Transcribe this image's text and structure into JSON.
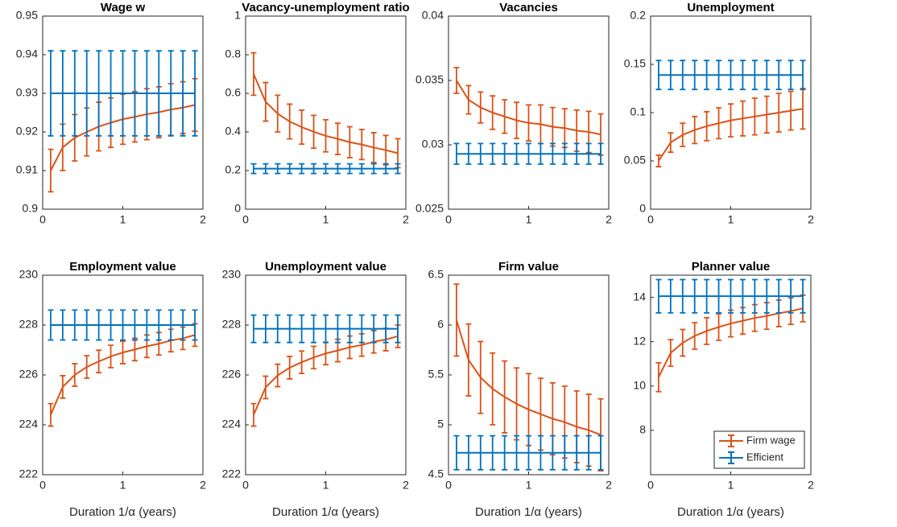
{
  "chart_data": [
    {
      "type": "line",
      "title": "Wage w",
      "x": [
        0.1,
        0.25,
        0.4,
        0.55,
        0.7,
        0.85,
        1.0,
        1.15,
        1.3,
        1.45,
        1.6,
        1.75,
        1.9
      ],
      "xlim": [
        0,
        2
      ],
      "xticks": [
        0,
        1,
        2
      ],
      "ylim": [
        0.9,
        0.95
      ],
      "yticks": [
        0.9,
        0.91,
        0.92,
        0.93,
        0.94,
        0.95
      ],
      "series": [
        {
          "color": "#d95319",
          "values": [
            0.91,
            0.916,
            0.9185,
            0.92,
            0.9214,
            0.9224,
            0.9233,
            0.9239,
            0.9246,
            0.9251,
            0.9258,
            0.9263,
            0.927
          ],
          "errors": [
            0.0055,
            0.006,
            0.006,
            0.0062,
            0.0063,
            0.0064,
            0.0065,
            0.0065,
            0.0066,
            0.0066,
            0.0067,
            0.0067,
            0.0068
          ]
        },
        {
          "color": "#0072bd",
          "values": [
            0.93,
            0.93,
            0.93,
            0.93,
            0.93,
            0.93,
            0.93,
            0.93,
            0.93,
            0.93,
            0.93,
            0.93,
            0.93
          ],
          "errors": [
            0.011,
            0.011,
            0.011,
            0.011,
            0.011,
            0.011,
            0.011,
            0.011,
            0.011,
            0.011,
            0.011,
            0.011,
            0.011
          ]
        }
      ]
    },
    {
      "type": "line",
      "title": "Vacancy-unemployment ratio",
      "x": [
        0.1,
        0.25,
        0.4,
        0.55,
        0.7,
        0.85,
        1.0,
        1.15,
        1.3,
        1.45,
        1.6,
        1.75,
        1.9
      ],
      "xlim": [
        0,
        2
      ],
      "xticks": [
        0,
        1,
        2
      ],
      "ylim": [
        0,
        1
      ],
      "yticks": [
        0,
        0.2,
        0.4,
        0.6,
        0.8,
        1
      ],
      "series": [
        {
          "color": "#d95319",
          "values": [
            0.7,
            0.556,
            0.495,
            0.454,
            0.425,
            0.401,
            0.38,
            0.364,
            0.347,
            0.335,
            0.319,
            0.306,
            0.29
          ],
          "errors": [
            0.11,
            0.1,
            0.095,
            0.09,
            0.088,
            0.085,
            0.083,
            0.081,
            0.08,
            0.078,
            0.077,
            0.076,
            0.075
          ]
        },
        {
          "color": "#0072bd",
          "values": [
            0.21,
            0.21,
            0.21,
            0.21,
            0.21,
            0.21,
            0.21,
            0.21,
            0.21,
            0.21,
            0.21,
            0.21,
            0.21
          ],
          "errors": [
            0.025,
            0.025,
            0.025,
            0.025,
            0.025,
            0.025,
            0.025,
            0.025,
            0.025,
            0.025,
            0.025,
            0.025,
            0.025
          ]
        }
      ]
    },
    {
      "type": "line",
      "title": "Vacancies",
      "x": [
        0.1,
        0.25,
        0.4,
        0.55,
        0.7,
        0.85,
        1.0,
        1.15,
        1.3,
        1.45,
        1.6,
        1.75,
        1.9
      ],
      "xlim": [
        0,
        2
      ],
      "xticks": [
        0,
        1,
        2
      ],
      "ylim": [
        0.025,
        0.04
      ],
      "yticks": [
        0.025,
        0.03,
        0.035,
        0.04
      ],
      "series": [
        {
          "color": "#d95319",
          "values": [
            0.035,
            0.0335,
            0.0329,
            0.0325,
            0.0322,
            0.0319,
            0.0317,
            0.0316,
            0.0314,
            0.0313,
            0.0311,
            0.031,
            0.0308
          ],
          "errors": [
            0.001,
            0.0011,
            0.0012,
            0.0013,
            0.0013,
            0.0014,
            0.0014,
            0.0015,
            0.0015,
            0.0015,
            0.0016,
            0.0016,
            0.0016
          ]
        },
        {
          "color": "#0072bd",
          "values": [
            0.0293,
            0.0293,
            0.0293,
            0.0293,
            0.0293,
            0.0293,
            0.0293,
            0.0293,
            0.0293,
            0.0293,
            0.0293,
            0.0293,
            0.0293
          ],
          "errors": [
            0.0008,
            0.0008,
            0.0008,
            0.0008,
            0.0008,
            0.0008,
            0.0008,
            0.0008,
            0.0008,
            0.0008,
            0.0008,
            0.0008,
            0.0008
          ]
        }
      ]
    },
    {
      "type": "line",
      "title": "Unemployment",
      "x": [
        0.1,
        0.25,
        0.4,
        0.55,
        0.7,
        0.85,
        1.0,
        1.15,
        1.3,
        1.45,
        1.6,
        1.75,
        1.9
      ],
      "xlim": [
        0,
        2
      ],
      "xticks": [
        0,
        1,
        2
      ],
      "ylim": [
        0,
        0.2
      ],
      "yticks": [
        0,
        0.05,
        0.1,
        0.15,
        0.2
      ],
      "series": [
        {
          "color": "#d95319",
          "values": [
            0.05,
            0.069,
            0.077,
            0.082,
            0.086,
            0.089,
            0.092,
            0.094,
            0.096,
            0.098,
            0.1,
            0.102,
            0.104
          ],
          "errors": [
            0.006,
            0.01,
            0.012,
            0.014,
            0.015,
            0.016,
            0.017,
            0.018,
            0.019,
            0.019,
            0.02,
            0.02,
            0.021
          ]
        },
        {
          "color": "#0072bd",
          "values": [
            0.139,
            0.139,
            0.139,
            0.139,
            0.139,
            0.139,
            0.139,
            0.139,
            0.139,
            0.139,
            0.139,
            0.139,
            0.139
          ],
          "errors": [
            0.015,
            0.015,
            0.015,
            0.015,
            0.015,
            0.015,
            0.015,
            0.015,
            0.015,
            0.015,
            0.015,
            0.015,
            0.015
          ]
        }
      ]
    },
    {
      "type": "line",
      "title": "Employment value",
      "xlabel": "Duration 1/α (years)",
      "x": [
        0.1,
        0.25,
        0.4,
        0.55,
        0.7,
        0.85,
        1.0,
        1.15,
        1.3,
        1.45,
        1.6,
        1.75,
        1.9
      ],
      "xlim": [
        0,
        2
      ],
      "xticks": [
        0,
        1,
        2
      ],
      "ylim": [
        222,
        230
      ],
      "yticks": [
        222,
        224,
        226,
        228,
        230
      ],
      "series": [
        {
          "color": "#d95319",
          "values": [
            224.4,
            225.52,
            226.0,
            226.32,
            226.54,
            226.74,
            226.9,
            227.02,
            227.15,
            227.25,
            227.38,
            227.47,
            227.6
          ],
          "errors": [
            0.45,
            0.45,
            0.45,
            0.45,
            0.45,
            0.45,
            0.45,
            0.45,
            0.45,
            0.45,
            0.45,
            0.45,
            0.45
          ]
        },
        {
          "color": "#0072bd",
          "values": [
            228,
            228,
            228,
            228,
            228,
            228,
            228,
            228,
            228,
            228,
            228,
            228,
            228
          ],
          "errors": [
            0.6,
            0.6,
            0.6,
            0.6,
            0.6,
            0.6,
            0.6,
            0.6,
            0.6,
            0.6,
            0.6,
            0.6,
            0.6
          ]
        }
      ]
    },
    {
      "type": "line",
      "title": "Unemployment value",
      "xlabel": "Duration 1/α (years)",
      "x": [
        0.1,
        0.25,
        0.4,
        0.55,
        0.7,
        0.85,
        1.0,
        1.15,
        1.3,
        1.45,
        1.6,
        1.75,
        1.9
      ],
      "xlim": [
        0,
        2
      ],
      "xticks": [
        0,
        1,
        2
      ],
      "ylim": [
        222,
        230
      ],
      "yticks": [
        222,
        224,
        226,
        228,
        230
      ],
      "series": [
        {
          "color": "#d95319",
          "values": [
            224.4,
            225.5,
            225.98,
            226.29,
            226.51,
            226.7,
            226.86,
            226.98,
            227.11,
            227.2,
            227.33,
            227.42,
            227.55
          ],
          "errors": [
            0.45,
            0.45,
            0.45,
            0.45,
            0.45,
            0.45,
            0.45,
            0.45,
            0.45,
            0.45,
            0.45,
            0.45,
            0.45
          ]
        },
        {
          "color": "#0072bd",
          "values": [
            227.85,
            227.85,
            227.85,
            227.85,
            227.85,
            227.85,
            227.85,
            227.85,
            227.85,
            227.85,
            227.85,
            227.85,
            227.85
          ],
          "errors": [
            0.55,
            0.55,
            0.55,
            0.55,
            0.55,
            0.55,
            0.55,
            0.55,
            0.55,
            0.55,
            0.55,
            0.55,
            0.55
          ]
        }
      ]
    },
    {
      "type": "line",
      "title": "Firm value",
      "xlabel": "Duration 1/α (years)",
      "x": [
        0.1,
        0.25,
        0.4,
        0.55,
        0.7,
        0.85,
        1.0,
        1.15,
        1.3,
        1.45,
        1.6,
        1.75,
        1.9
      ],
      "xlim": [
        0,
        2
      ],
      "xticks": [
        0,
        1,
        2
      ],
      "ylim": [
        4.5,
        6.5
      ],
      "yticks": [
        4.5,
        5,
        5.5,
        6,
        6.5
      ],
      "series": [
        {
          "color": "#d95319",
          "values": [
            6.05,
            5.65,
            5.475,
            5.36,
            5.28,
            5.21,
            5.153,
            5.107,
            5.061,
            5.027,
            4.98,
            4.946,
            4.9
          ],
          "errors": [
            0.36,
            0.36,
            0.36,
            0.36,
            0.36,
            0.36,
            0.36,
            0.36,
            0.36,
            0.36,
            0.36,
            0.36,
            0.36
          ]
        },
        {
          "color": "#0072bd",
          "values": [
            4.72,
            4.72,
            4.72,
            4.72,
            4.72,
            4.72,
            4.72,
            4.72,
            4.72,
            4.72,
            4.72,
            4.72,
            4.72
          ],
          "errors": [
            0.17,
            0.17,
            0.17,
            0.17,
            0.17,
            0.17,
            0.17,
            0.17,
            0.17,
            0.17,
            0.17,
            0.17,
            0.17
          ]
        }
      ]
    },
    {
      "type": "line",
      "title": "Planner value",
      "xlabel": "Duration 1/α (years)",
      "legend": "lower right",
      "x": [
        0.1,
        0.25,
        0.4,
        0.55,
        0.7,
        0.85,
        1.0,
        1.15,
        1.3,
        1.45,
        1.6,
        1.75,
        1.9
      ],
      "xlim": [
        0,
        2
      ],
      "xticks": [
        0,
        1,
        2
      ],
      "ylim": [
        6,
        15
      ],
      "yticks": [
        8,
        10,
        12,
        14
      ],
      "series": [
        {
          "name": "Firm wage",
          "color": "#d95319",
          "values": [
            10.4,
            11.49,
            11.95,
            12.26,
            12.48,
            12.66,
            12.82,
            12.94,
            13.07,
            13.16,
            13.28,
            13.38,
            13.5
          ],
          "errors": [
            0.65,
            0.6,
            0.6,
            0.6,
            0.6,
            0.6,
            0.6,
            0.6,
            0.6,
            0.6,
            0.6,
            0.6,
            0.6
          ]
        },
        {
          "name": "Efficient",
          "color": "#0072bd",
          "values": [
            14.05,
            14.05,
            14.05,
            14.05,
            14.05,
            14.05,
            14.05,
            14.05,
            14.05,
            14.05,
            14.05,
            14.05,
            14.05
          ],
          "errors": [
            0.75,
            0.75,
            0.75,
            0.75,
            0.75,
            0.75,
            0.75,
            0.75,
            0.75,
            0.75,
            0.75,
            0.75,
            0.75
          ]
        }
      ]
    }
  ]
}
